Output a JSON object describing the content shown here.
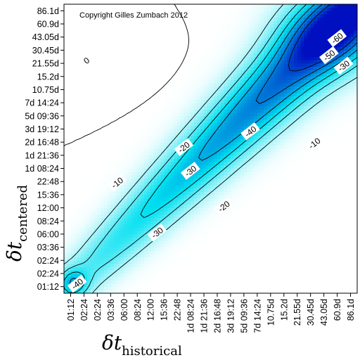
{
  "chart_data": {
    "type": "heatmap",
    "annotation": "Copyright Gilles Zumbach 2012",
    "xlabel": {
      "symbol": "δt",
      "subscript": "historical"
    },
    "ylabel": {
      "symbol": "δt",
      "subscript": "centered"
    },
    "x_ticks": [
      "01:12",
      "02:24",
      "02:24",
      "03:36",
      "06:00",
      "08:24",
      "12:00",
      "15:36",
      "22:48",
      "1d 08:24",
      "1d 21:36",
      "2d 16:48",
      "3d 19:12",
      "5d 09:36",
      "7d 14:24",
      "10.75d",
      "15.2d",
      "21.55d",
      "30.45d",
      "43.05d",
      "60.9d",
      "86.1d"
    ],
    "y_ticks": [
      "01:12",
      "02:24",
      "02:24",
      "03:36",
      "06:00",
      "08:24",
      "12:00",
      "15:36",
      "22:48",
      "1d 08:24",
      "1d 21:36",
      "2d 16:48",
      "3d 19:12",
      "5d 09:36",
      "7d 14:24",
      "10.75d",
      "15.2d",
      "21.55d",
      "30.45d",
      "43.05d",
      "60.9d",
      "86.1d"
    ],
    "contour_levels": [
      0,
      -10,
      -20,
      -30,
      -40,
      -50,
      -60
    ],
    "contour_labels": [
      {
        "text": "0",
        "at": [
          1.2,
          17.2
        ]
      },
      {
        "text": "-10",
        "at": [
          3.5,
          7.9
        ]
      },
      {
        "text": "-10",
        "at": [
          18.3,
          10.9
        ]
      },
      {
        "text": "-20",
        "at": [
          8.5,
          10.6
        ]
      },
      {
        "text": "-20",
        "at": [
          11.5,
          6.1
        ]
      },
      {
        "text": "-30",
        "at": [
          9.0,
          8.8
        ]
      },
      {
        "text": "-30",
        "at": [
          6.5,
          4.1
        ]
      },
      {
        "text": "-30",
        "at": [
          20.5,
          16.8
        ]
      },
      {
        "text": "-40",
        "at": [
          13.5,
          11.8
        ]
      },
      {
        "text": "-40",
        "at": [
          0.5,
          0.2
        ]
      },
      {
        "text": "-50",
        "at": [
          19.4,
          17.6
        ]
      },
      {
        "text": "-60",
        "at": [
          20.0,
          18.9
        ]
      }
    ],
    "color_scale": {
      "high": "#ffffff",
      "mid": "#00e0f0",
      "low": "#0010c0"
    }
  }
}
